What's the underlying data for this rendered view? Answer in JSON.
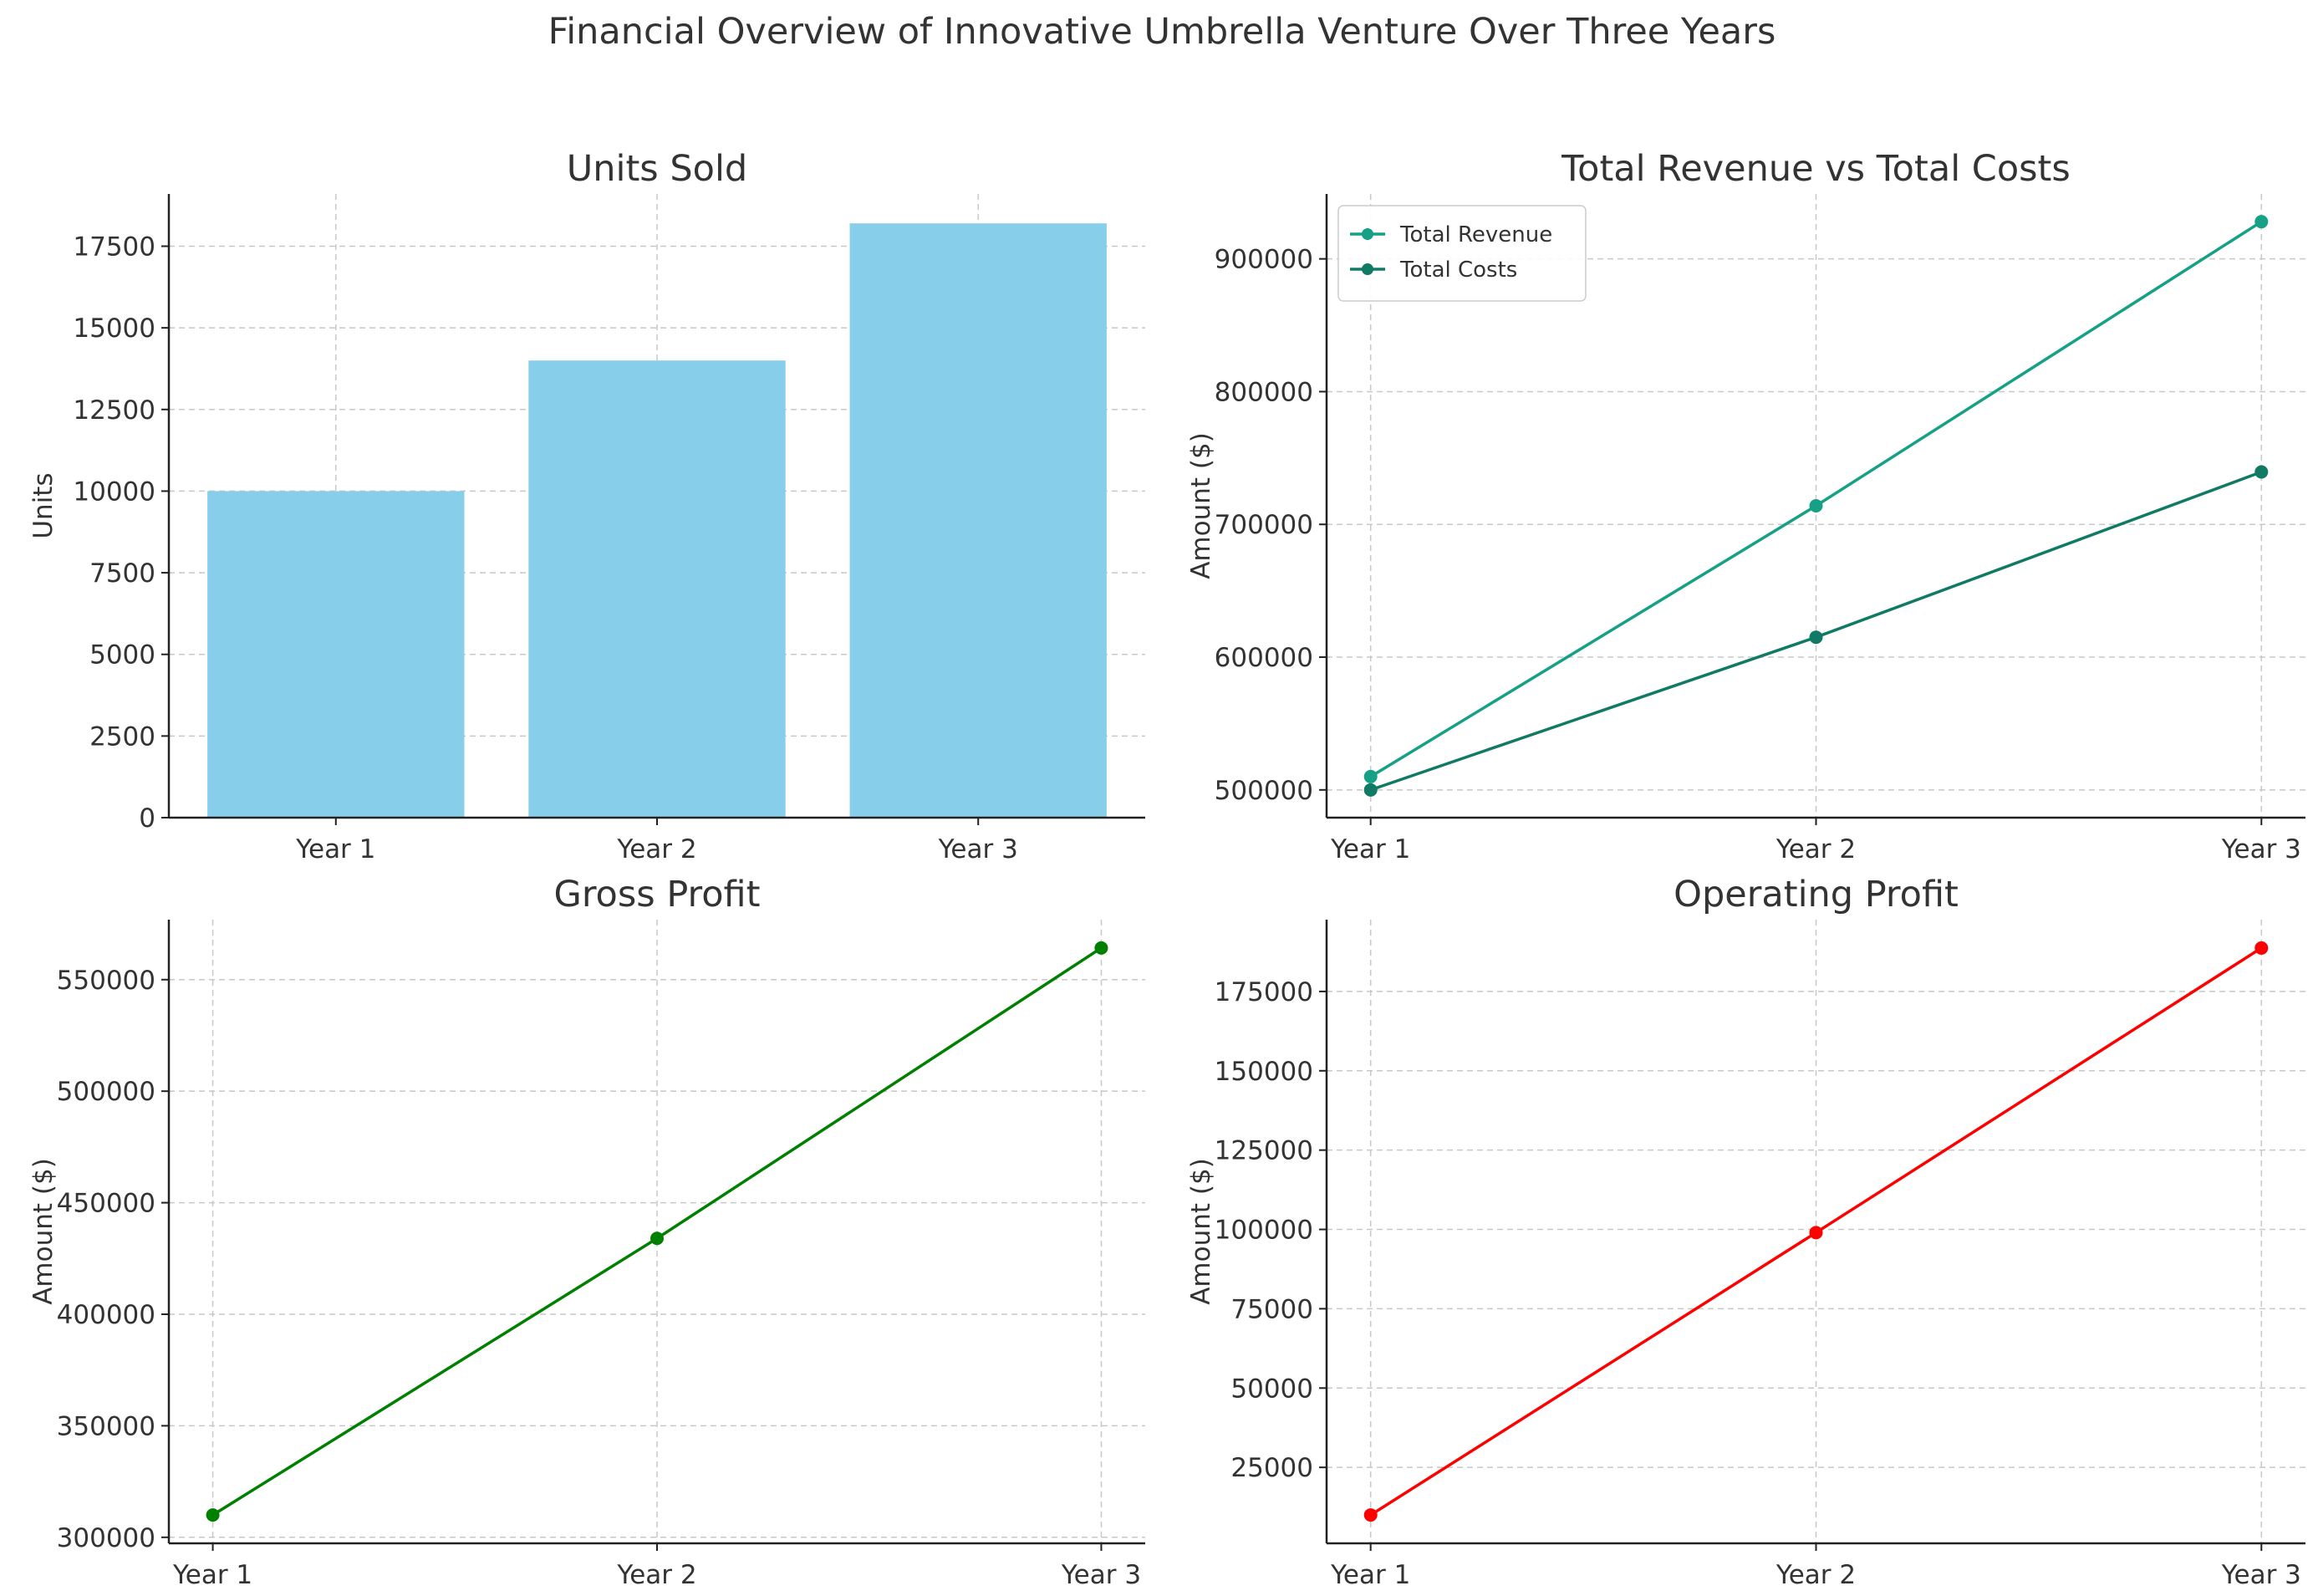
{
  "figure_title": "Financial Overview of Innovative Umbrella Venture Over Three Years",
  "chart_data": [
    {
      "id": "units",
      "type": "bar",
      "title": "Units Sold",
      "xlabel": "",
      "ylabel": "Units",
      "categories": [
        "Year 1",
        "Year 2",
        "Year 3"
      ],
      "values": [
        10000,
        14000,
        18200
      ],
      "ylim": [
        0,
        19100
      ],
      "yticks": [
        0,
        2500,
        5000,
        7500,
        10000,
        12500,
        15000,
        17500
      ],
      "grid": true,
      "color": "#87CEEB"
    },
    {
      "id": "rev-costs",
      "type": "line",
      "title": "Total Revenue vs Total Costs",
      "xlabel": "",
      "ylabel": "Amount ($)",
      "categories": [
        "Year 1",
        "Year 2",
        "Year 3"
      ],
      "series": [
        {
          "name": "Total Revenue",
          "values": [
            510000,
            714000,
            928000
          ],
          "color": "#16A085"
        },
        {
          "name": "Total Costs",
          "values": [
            500000,
            615000,
            739500
          ],
          "color": "#117A65"
        }
      ],
      "ylim": [
        479100,
        948900
      ],
      "yticks": [
        500000,
        600000,
        700000,
        800000,
        900000
      ],
      "grid": true,
      "legend": "upper-left"
    },
    {
      "id": "gross",
      "type": "line",
      "title": "Gross Profit",
      "xlabel": "",
      "ylabel": "Amount ($)",
      "categories": [
        "Year 1",
        "Year 2",
        "Year 3"
      ],
      "series": [
        {
          "name": "",
          "values": [
            310000,
            434000,
            564200
          ],
          "color": "#008000"
        }
      ],
      "ylim": [
        297300,
        576900
      ],
      "yticks": [
        300000,
        350000,
        400000,
        450000,
        500000,
        550000
      ],
      "grid": true
    },
    {
      "id": "operating",
      "type": "line",
      "title": "Operating Profit",
      "xlabel": "",
      "ylabel": "Amount ($)",
      "categories": [
        "Year 1",
        "Year 2",
        "Year 3"
      ],
      "series": [
        {
          "name": "",
          "values": [
            10000,
            99000,
            188700
          ],
          "color": "#FF0000"
        }
      ],
      "ylim": [
        1065,
        197635
      ],
      "yticks": [
        25000,
        50000,
        75000,
        100000,
        125000,
        150000,
        175000
      ],
      "grid": true
    }
  ]
}
